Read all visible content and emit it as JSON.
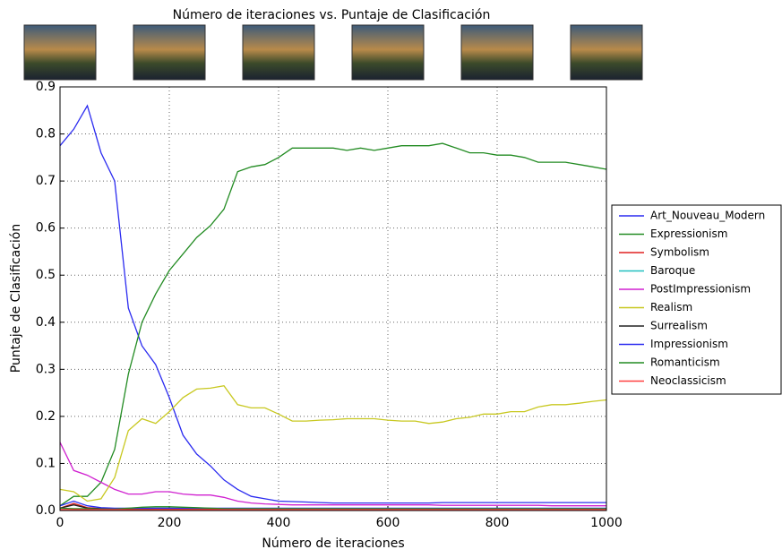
{
  "chart_data": {
    "type": "line",
    "title": "Número de iteraciones vs. Puntaje de Clasificación",
    "x_label": "Número de iteraciones",
    "y_label": "Puntaje de Clasificación",
    "xlim": [
      0,
      1000
    ],
    "ylim": [
      0,
      0.9
    ],
    "xticks": [
      0,
      200,
      400,
      600,
      800,
      1000
    ],
    "yticks": [
      {
        "value": 0,
        "label": "0.0"
      },
      0.1,
      0.2,
      0.3,
      0.4,
      0.5,
      0.6,
      0.7,
      0.8,
      0.9
    ],
    "grid": true,
    "legend": "right",
    "x": [
      0,
      25,
      50,
      75,
      100,
      125,
      150,
      175,
      200,
      225,
      250,
      275,
      300,
      325,
      350,
      375,
      400,
      425,
      450,
      475,
      500,
      525,
      550,
      575,
      600,
      625,
      650,
      675,
      700,
      725,
      750,
      775,
      800,
      825,
      850,
      875,
      900,
      925,
      950,
      975,
      1000
    ],
    "series": [
      {
        "name": "Art_Nouveau_Modern",
        "color": "#2b2bf0",
        "values": [
          0.775,
          0.81,
          0.86,
          0.76,
          0.7,
          0.43,
          0.35,
          0.31,
          0.24,
          0.16,
          0.12,
          0.095,
          0.065,
          0.045,
          0.03,
          0.025,
          0.02,
          0.019,
          0.018,
          0.017,
          0.016,
          0.016,
          0.016,
          0.016,
          0.016,
          0.016,
          0.016,
          0.016,
          0.017,
          0.017,
          0.017,
          0.017,
          0.017,
          0.017,
          0.017,
          0.017,
          0.017,
          0.017,
          0.017,
          0.017,
          0.017
        ]
      },
      {
        "name": "Expressionism",
        "color": "#228b22",
        "values": [
          0.01,
          0.03,
          0.03,
          0.06,
          0.13,
          0.29,
          0.4,
          0.46,
          0.51,
          0.545,
          0.58,
          0.605,
          0.64,
          0.72,
          0.73,
          0.735,
          0.75,
          0.77,
          0.77,
          0.77,
          0.77,
          0.765,
          0.77,
          0.765,
          0.77,
          0.775,
          0.775,
          0.775,
          0.78,
          0.77,
          0.76,
          0.76,
          0.755,
          0.755,
          0.75,
          0.74,
          0.74,
          0.74,
          0.735,
          0.73,
          0.725
        ]
      },
      {
        "name": "Symbolism",
        "color": "#e02020",
        "values": [
          0.005,
          0.015,
          0.006,
          0.004,
          0.003,
          0.003,
          0.003,
          0.003,
          0.003,
          0.003,
          0.003,
          0.003,
          0.003,
          0.003,
          0.003,
          0.003,
          0.003,
          0.003,
          0.003,
          0.003,
          0.003,
          0.003,
          0.003,
          0.003,
          0.003,
          0.003,
          0.003,
          0.003,
          0.003,
          0.003,
          0.003,
          0.003,
          0.003,
          0.003,
          0.003,
          0.003,
          0.003,
          0.003,
          0.003,
          0.003,
          0.003
        ]
      },
      {
        "name": "Baroque",
        "color": "#20c0c0",
        "values": [
          0.001,
          0.001,
          0.001,
          0.001,
          0.001,
          0.001,
          0.001,
          0.001,
          0.001,
          0.001,
          0.001,
          0.001,
          0.001,
          0.001,
          0.001,
          0.001,
          0.001,
          0.001,
          0.001,
          0.001,
          0.001,
          0.001,
          0.001,
          0.001,
          0.001,
          0.001,
          0.001,
          0.001,
          0.001,
          0.001,
          0.001,
          0.001,
          0.001,
          0.001,
          0.001,
          0.001,
          0.001,
          0.001,
          0.001,
          0.001,
          0.001
        ]
      },
      {
        "name": "PostImpressionism",
        "color": "#d020d0",
        "values": [
          0.145,
          0.085,
          0.075,
          0.06,
          0.045,
          0.035,
          0.035,
          0.04,
          0.04,
          0.035,
          0.033,
          0.033,
          0.028,
          0.02,
          0.016,
          0.014,
          0.013,
          0.012,
          0.012,
          0.012,
          0.012,
          0.012,
          0.012,
          0.012,
          0.012,
          0.012,
          0.012,
          0.012,
          0.011,
          0.011,
          0.011,
          0.011,
          0.011,
          0.011,
          0.011,
          0.011,
          0.01,
          0.01,
          0.01,
          0.01,
          0.01
        ]
      },
      {
        "name": "Realism",
        "color": "#c8c820",
        "values": [
          0.045,
          0.04,
          0.02,
          0.025,
          0.07,
          0.17,
          0.195,
          0.185,
          0.21,
          0.24,
          0.258,
          0.26,
          0.265,
          0.225,
          0.218,
          0.218,
          0.205,
          0.19,
          0.19,
          0.192,
          0.193,
          0.195,
          0.195,
          0.195,
          0.192,
          0.19,
          0.19,
          0.185,
          0.188,
          0.195,
          0.198,
          0.205,
          0.205,
          0.21,
          0.21,
          0.22,
          0.225,
          0.225,
          0.228,
          0.232,
          0.235
        ]
      },
      {
        "name": "Surrealism",
        "color": "#222222",
        "values": [
          0.005,
          0.012,
          0.005,
          0.004,
          0.003,
          0.003,
          0.003,
          0.002,
          0.002,
          0.002,
          0.002,
          0.002,
          0.002,
          0.002,
          0.002,
          0.002,
          0.002,
          0.002,
          0.002,
          0.002,
          0.002,
          0.002,
          0.002,
          0.002,
          0.002,
          0.002,
          0.002,
          0.002,
          0.002,
          0.002,
          0.002,
          0.002,
          0.002,
          0.002,
          0.002,
          0.002,
          0.002,
          0.002,
          0.002,
          0.002,
          0.002
        ]
      },
      {
        "name": "Impressionism",
        "color": "#2b2bf0",
        "values": [
          0.01,
          0.02,
          0.01,
          0.006,
          0.005,
          0.005,
          0.005,
          0.005,
          0.005,
          0.005,
          0.005,
          0.005,
          0.005,
          0.005,
          0.005,
          0.005,
          0.005,
          0.005,
          0.005,
          0.005,
          0.005,
          0.005,
          0.005,
          0.005,
          0.005,
          0.005,
          0.005,
          0.005,
          0.005,
          0.005,
          0.005,
          0.005,
          0.005,
          0.005,
          0.005,
          0.005,
          0.005,
          0.005,
          0.005,
          0.005,
          0.005
        ]
      },
      {
        "name": "Romanticism",
        "color": "#228b22",
        "values": [
          0.005,
          0.004,
          0.004,
          0.003,
          0.003,
          0.005,
          0.007,
          0.008,
          0.008,
          0.007,
          0.006,
          0.005,
          0.004,
          0.004,
          0.004,
          0.004,
          0.004,
          0.004,
          0.004,
          0.004,
          0.004,
          0.004,
          0.004,
          0.004,
          0.004,
          0.004,
          0.004,
          0.004,
          0.004,
          0.004,
          0.004,
          0.004,
          0.004,
          0.004,
          0.004,
          0.004,
          0.004,
          0.004,
          0.004,
          0.004,
          0.004
        ]
      },
      {
        "name": "Neoclassicism",
        "color": "#ff4040",
        "values": [
          0.002,
          0.002,
          0.002,
          0.002,
          0.002,
          0.002,
          0.002,
          0.002,
          0.002,
          0.002,
          0.002,
          0.002,
          0.002,
          0.002,
          0.002,
          0.002,
          0.002,
          0.002,
          0.002,
          0.002,
          0.002,
          0.002,
          0.002,
          0.002,
          0.002,
          0.002,
          0.002,
          0.002,
          0.002,
          0.002,
          0.002,
          0.002,
          0.002,
          0.002,
          0.002,
          0.002,
          0.002,
          0.002,
          0.002,
          0.002,
          0.002
        ]
      }
    ]
  }
}
